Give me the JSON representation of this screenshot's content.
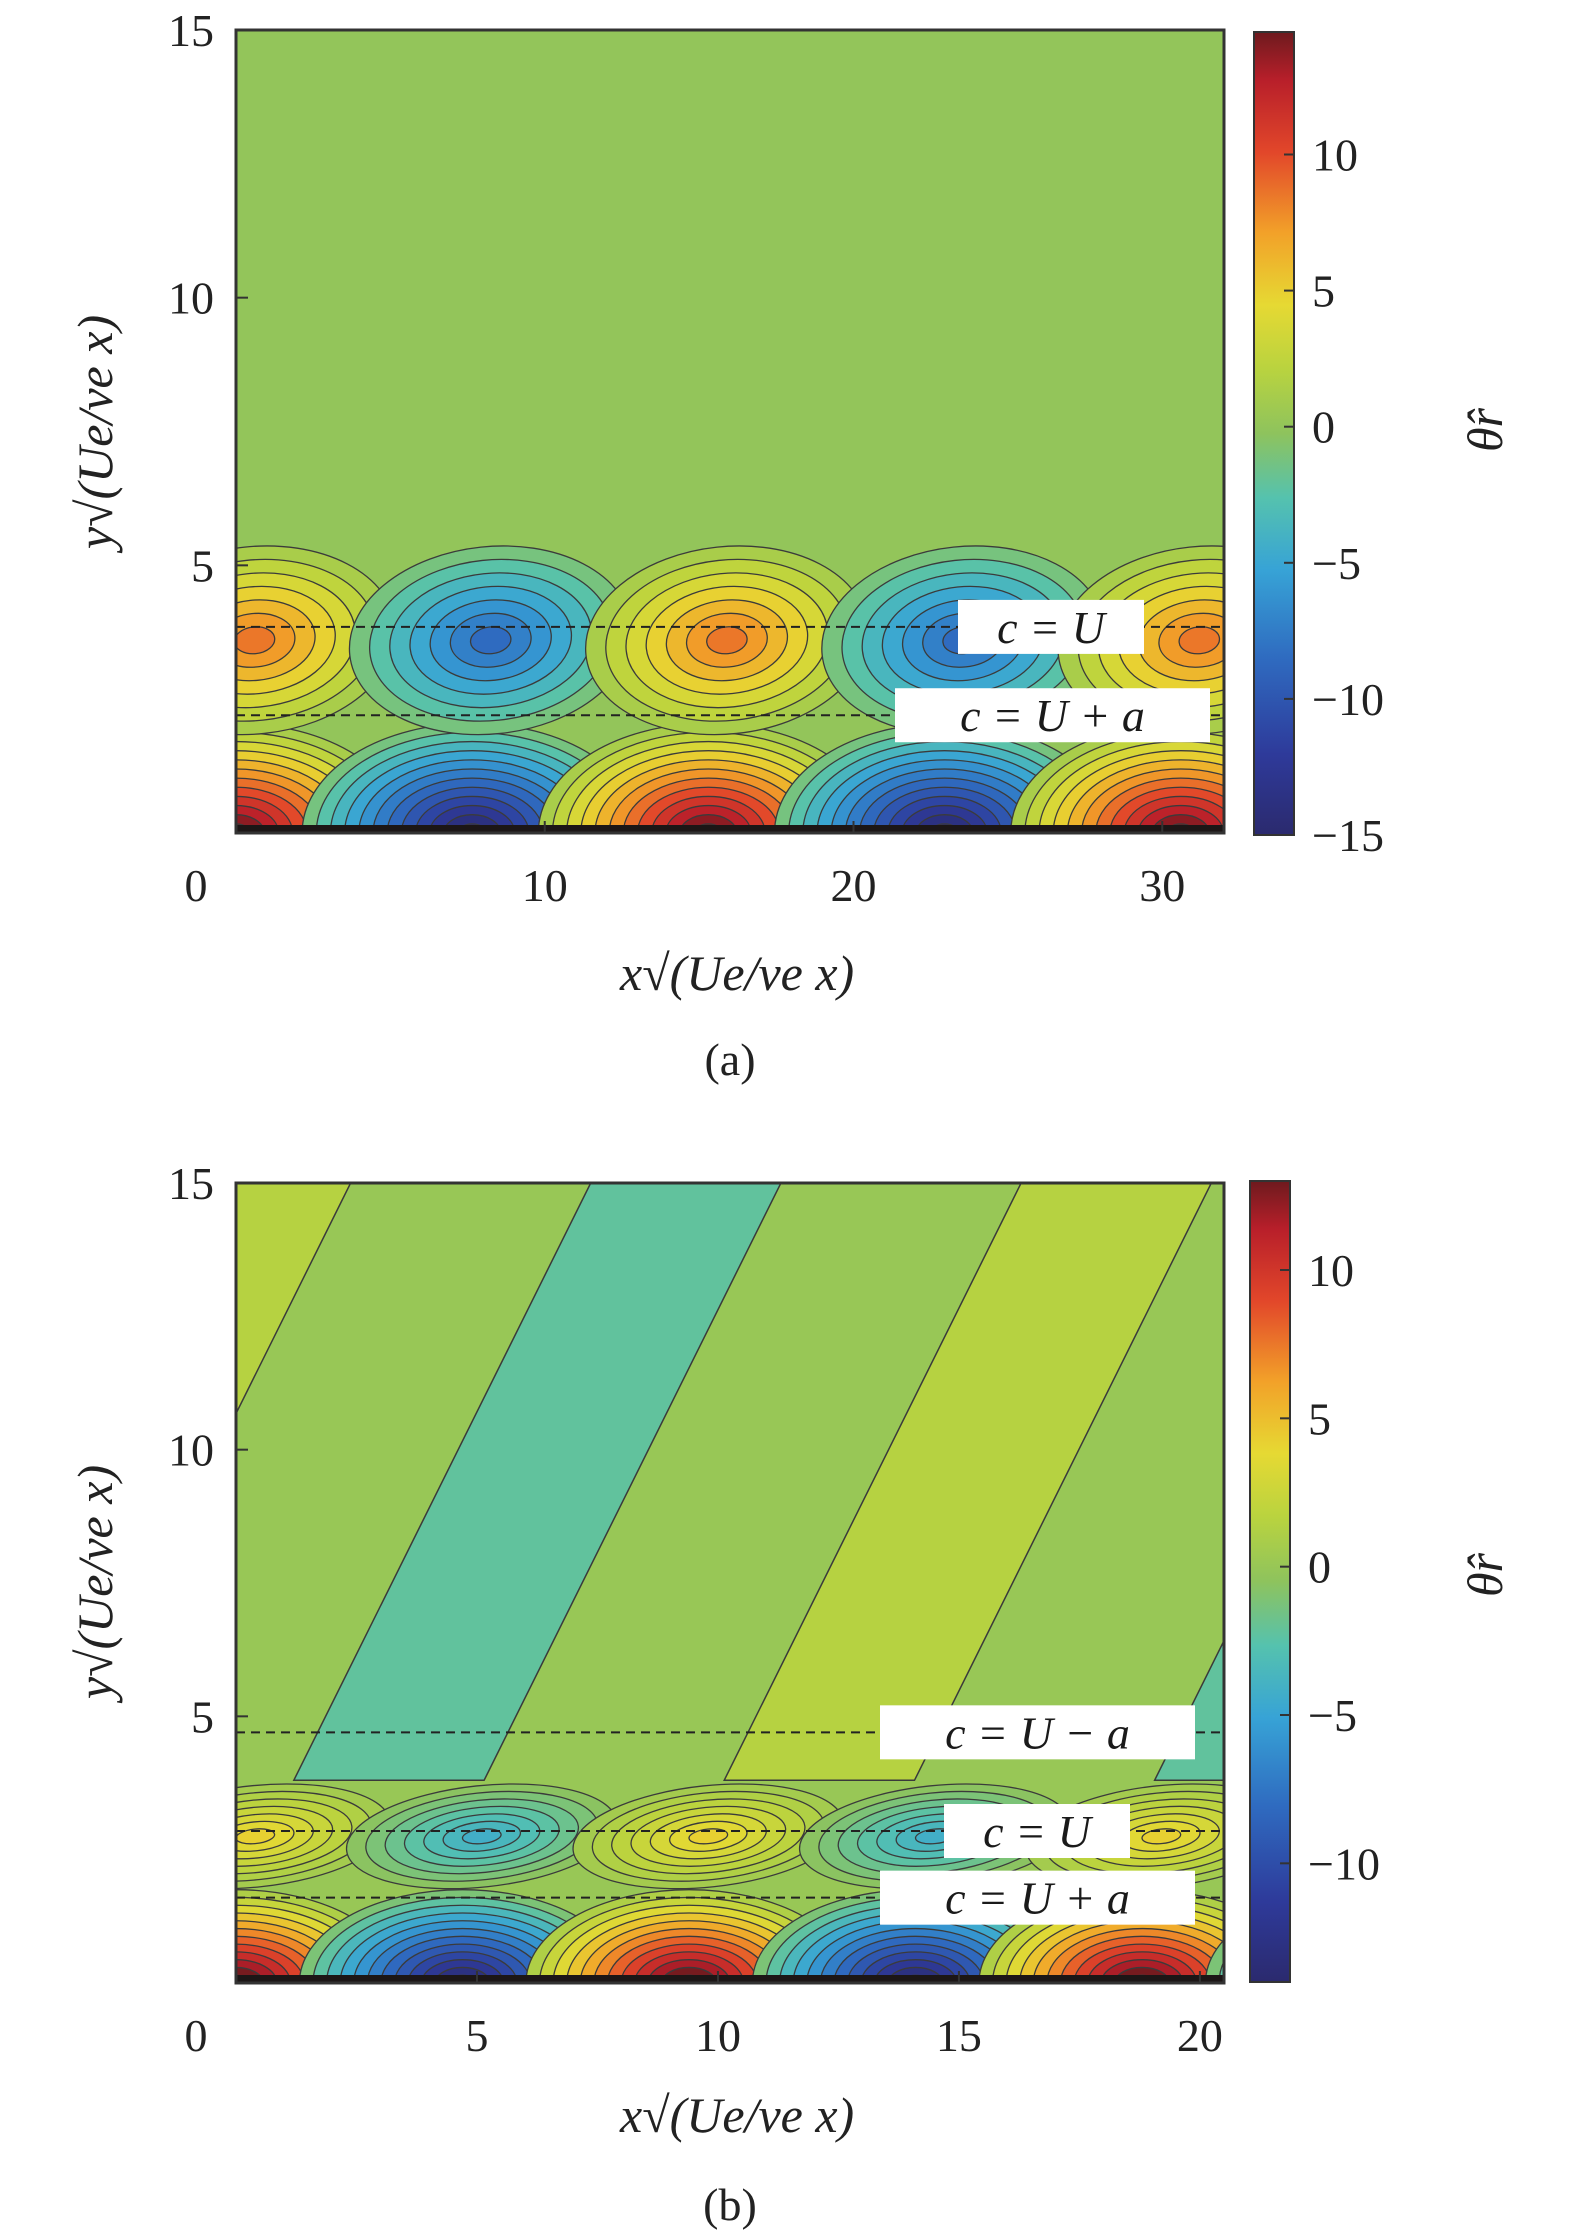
{
  "chart_data": [
    {
      "type": "heatmap",
      "panel_caption": "(a)",
      "xlabel": "x√(Ue/νe x)",
      "ylabel": "y√(Ue/νe x)",
      "colorbar_label": "θ̂r",
      "xlim": [
        0,
        32
      ],
      "ylim": [
        0,
        15
      ],
      "xticks": [
        "0",
        "10",
        "20",
        "30"
      ],
      "xtick_values": [
        0,
        10,
        20,
        30
      ],
      "yticks": [
        "5",
        "10",
        "15"
      ],
      "ytick_values": [
        5,
        10,
        15
      ],
      "clim": [
        -15,
        14.5
      ],
      "colorbar_ticks": [
        "10",
        "5",
        "0",
        "−5",
        "−10",
        "−15"
      ],
      "colorbar_tick_values": [
        10,
        5,
        0,
        -5,
        -10,
        -15
      ],
      "wavelength": 15.3,
      "wall_amplitude": 15,
      "critical_lines": [
        {
          "label": "c = U",
          "y": 3.85
        },
        {
          "label": "c = U + a",
          "y": 2.2
        }
      ]
    },
    {
      "type": "heatmap",
      "panel_caption": "(b)",
      "xlabel": "x√(Ue/νe x)",
      "ylabel": "y√(Ue/νe x)",
      "colorbar_label": "θ̂r",
      "xlim": [
        0,
        20.5
      ],
      "ylim": [
        0,
        15
      ],
      "xticks": [
        "0",
        "5",
        "10",
        "15",
        "20"
      ],
      "xtick_values": [
        0,
        5,
        10,
        15,
        20
      ],
      "yticks": [
        "5",
        "10",
        "15"
      ],
      "ytick_values": [
        5,
        10,
        15
      ],
      "clim": [
        -14,
        13
      ],
      "colorbar_ticks": [
        "10",
        "5",
        "0",
        "−5",
        "−10"
      ],
      "colorbar_tick_values": [
        10,
        5,
        0,
        -5,
        -10
      ],
      "wavelength": 9.4,
      "wall_amplitude": 14,
      "critical_lines": [
        {
          "label": "c = U − a",
          "y": 4.7
        },
        {
          "label": "c = U",
          "y": 2.85
        },
        {
          "label": "c = U + a",
          "y": 1.6
        }
      ]
    }
  ]
}
